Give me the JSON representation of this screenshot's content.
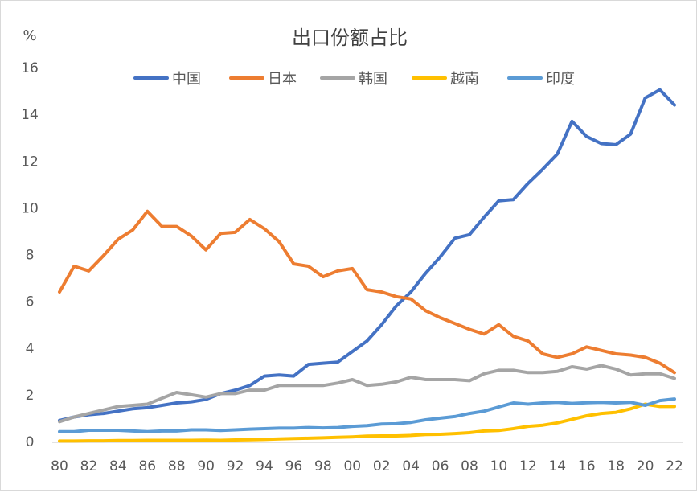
{
  "chart_data": {
    "type": "line",
    "title": "出口份额占比",
    "ylabel": "%",
    "ylim": [
      0,
      16
    ],
    "yticks": [
      "0",
      "2",
      "4",
      "6",
      "8",
      "10",
      "12",
      "14",
      "16"
    ],
    "legend_position": "top",
    "grid": false,
    "x": [
      "80",
      "81",
      "82",
      "83",
      "84",
      "85",
      "86",
      "87",
      "88",
      "89",
      "90",
      "91",
      "92",
      "93",
      "94",
      "95",
      "96",
      "97",
      "98",
      "99",
      "00",
      "01",
      "02",
      "03",
      "04",
      "05",
      "06",
      "07",
      "08",
      "09",
      "10",
      "11",
      "12",
      "13",
      "14",
      "15",
      "16",
      "17",
      "18",
      "19",
      "20",
      "21",
      "22"
    ],
    "xticks": [
      "80",
      "82",
      "84",
      "86",
      "88",
      "90",
      "92",
      "94",
      "96",
      "98",
      "00",
      "02",
      "04",
      "06",
      "08",
      "10",
      "12",
      "14",
      "16",
      "18",
      "20",
      "22"
    ],
    "series": [
      {
        "name": "中国",
        "color": "#4472C4",
        "values": [
          0.9,
          1.05,
          1.15,
          1.2,
          1.3,
          1.4,
          1.45,
          1.55,
          1.65,
          1.7,
          1.8,
          2.05,
          2.2,
          2.4,
          2.8,
          2.85,
          2.8,
          3.3,
          3.35,
          3.4,
          3.85,
          4.3,
          5.0,
          5.8,
          6.4,
          7.2,
          7.9,
          8.7,
          8.85,
          9.6,
          10.3,
          10.35,
          11.05,
          11.65,
          12.3,
          13.7,
          13.05,
          12.75,
          12.7,
          13.15,
          14.7,
          15.05,
          14.4
        ]
      },
      {
        "name": "日本",
        "color": "#ED7D31",
        "values": [
          6.4,
          7.5,
          7.3,
          7.95,
          8.65,
          9.05,
          9.85,
          9.2,
          9.2,
          8.8,
          8.2,
          8.9,
          8.95,
          9.5,
          9.1,
          8.55,
          7.6,
          7.5,
          7.05,
          7.3,
          7.4,
          6.5,
          6.4,
          6.2,
          6.1,
          5.6,
          5.3,
          5.05,
          4.8,
          4.6,
          5.0,
          4.5,
          4.3,
          3.75,
          3.6,
          3.75,
          4.05,
          3.9,
          3.75,
          3.7,
          3.6,
          3.35,
          2.95
        ]
      },
      {
        "name": "韩国",
        "color": "#A5A5A5",
        "values": [
          0.85,
          1.05,
          1.2,
          1.35,
          1.5,
          1.55,
          1.6,
          1.85,
          2.1,
          2.0,
          1.9,
          2.05,
          2.05,
          2.2,
          2.2,
          2.4,
          2.4,
          2.4,
          2.4,
          2.5,
          2.65,
          2.4,
          2.45,
          2.55,
          2.75,
          2.65,
          2.65,
          2.65,
          2.6,
          2.9,
          3.05,
          3.05,
          2.95,
          2.95,
          3.0,
          3.2,
          3.1,
          3.25,
          3.1,
          2.85,
          2.9,
          2.9,
          2.7
        ]
      },
      {
        "name": "越南",
        "color": "#FFC000",
        "values": [
          0.02,
          0.02,
          0.03,
          0.03,
          0.04,
          0.04,
          0.05,
          0.05,
          0.05,
          0.05,
          0.06,
          0.05,
          0.07,
          0.08,
          0.09,
          0.11,
          0.13,
          0.14,
          0.16,
          0.18,
          0.2,
          0.23,
          0.24,
          0.24,
          0.26,
          0.3,
          0.31,
          0.34,
          0.38,
          0.45,
          0.47,
          0.55,
          0.65,
          0.7,
          0.8,
          0.95,
          1.1,
          1.2,
          1.25,
          1.4,
          1.6,
          1.5,
          1.5
        ]
      },
      {
        "name": "印度",
        "color": "#5B9BD5",
        "values": [
          0.42,
          0.42,
          0.48,
          0.48,
          0.48,
          0.45,
          0.42,
          0.45,
          0.45,
          0.5,
          0.5,
          0.47,
          0.5,
          0.53,
          0.55,
          0.57,
          0.57,
          0.6,
          0.58,
          0.6,
          0.65,
          0.68,
          0.75,
          0.76,
          0.82,
          0.93,
          1.0,
          1.07,
          1.2,
          1.3,
          1.48,
          1.65,
          1.6,
          1.65,
          1.68,
          1.63,
          1.66,
          1.68,
          1.65,
          1.68,
          1.55,
          1.75,
          1.82
        ]
      }
    ]
  }
}
